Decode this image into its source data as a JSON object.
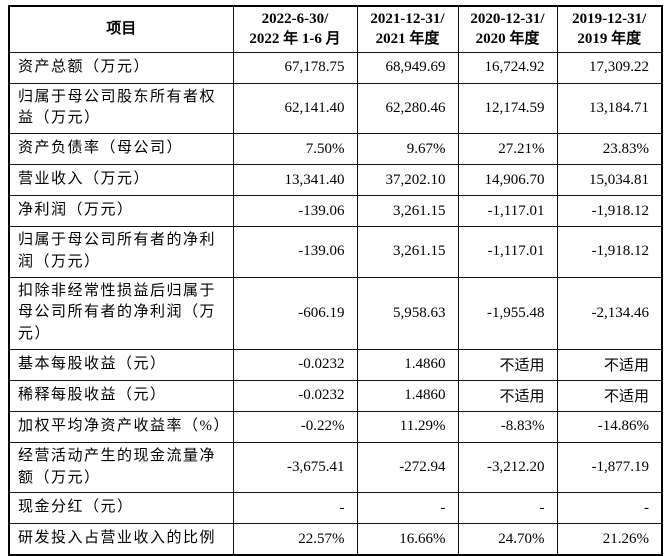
{
  "colors": {
    "border": "#000000",
    "text": "#000000",
    "background": "#ffffff"
  },
  "table": {
    "header": {
      "item": "项目",
      "periods": [
        "2022-6-30/\n2022 年 1-6 月",
        "2021-12-31/\n2021 年度",
        "2020-12-31/\n2020 年度",
        "2019-12-31/\n2019 年度"
      ]
    },
    "rows": [
      {
        "label": "资产总额（万元）",
        "values": [
          "67,178.75",
          "68,949.69",
          "16,724.92",
          "17,309.22"
        ]
      },
      {
        "label": "归属于母公司股东所有者权益（万元）",
        "values": [
          "62,141.40",
          "62,280.46",
          "12,174.59",
          "13,184.71"
        ]
      },
      {
        "label": "资产负债率（母公司）",
        "values": [
          "7.50%",
          "9.67%",
          "27.21%",
          "23.83%"
        ]
      },
      {
        "label": "营业收入（万元）",
        "values": [
          "13,341.40",
          "37,202.10",
          "14,906.70",
          "15,034.81"
        ]
      },
      {
        "label": "净利润（万元）",
        "values": [
          "-139.06",
          "3,261.15",
          "-1,117.01",
          "-1,918.12"
        ]
      },
      {
        "label": "归属于母公司所有者的净利润（万元）",
        "values": [
          "-139.06",
          "3,261.15",
          "-1,117.01",
          "-1,918.12"
        ]
      },
      {
        "label": "扣除非经常性损益后归属于母公司所有者的净利润（万元）",
        "values": [
          "-606.19",
          "5,958.63",
          "-1,955.48",
          "-2,134.46"
        ]
      },
      {
        "label": "基本每股收益（元）",
        "values": [
          "-0.0232",
          "1.4860",
          "不适用",
          "不适用"
        ]
      },
      {
        "label": "稀释每股收益（元）",
        "values": [
          "-0.0232",
          "1.4860",
          "不适用",
          "不适用"
        ]
      },
      {
        "label": "加权平均净资产收益率（%）",
        "values": [
          "-0.22%",
          "11.29%",
          "-8.83%",
          "-14.86%"
        ]
      },
      {
        "label": "经营活动产生的现金流量净额（万元）",
        "values": [
          "-3,675.41",
          "-272.94",
          "-3,212.20",
          "-1,877.19"
        ]
      },
      {
        "label": "现金分红（元）",
        "values": [
          "-",
          "-",
          "-",
          "-"
        ]
      },
      {
        "label": "研发投入占营业收入的比例",
        "values": [
          "22.57%",
          "16.66%",
          "24.70%",
          "21.26%"
        ]
      }
    ]
  }
}
